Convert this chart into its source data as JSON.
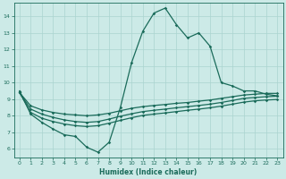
{
  "xlabel": "Humidex (Indice chaleur)",
  "bg_color": "#cceae7",
  "grid_color": "#aad4d0",
  "line_color": "#1a6b5a",
  "xlim": [
    -0.5,
    23.5
  ],
  "ylim": [
    5.5,
    14.8
  ],
  "xticks": [
    0,
    1,
    2,
    3,
    4,
    5,
    6,
    7,
    8,
    9,
    10,
    11,
    12,
    13,
    14,
    15,
    16,
    17,
    18,
    19,
    20,
    21,
    22,
    23
  ],
  "yticks": [
    6,
    7,
    8,
    9,
    10,
    11,
    12,
    13,
    14
  ],
  "series1_x": [
    0,
    1,
    2,
    3,
    4,
    5,
    6,
    7,
    8,
    9,
    10,
    11,
    12,
    13,
    14,
    15,
    16,
    17,
    18,
    19,
    20,
    21,
    22,
    23
  ],
  "series1_y": [
    9.5,
    8.1,
    7.6,
    7.2,
    6.85,
    6.75,
    6.1,
    5.8,
    6.4,
    8.5,
    11.2,
    13.1,
    14.2,
    14.5,
    13.5,
    12.7,
    13.0,
    12.2,
    10.0,
    9.8,
    9.5,
    9.5,
    9.3,
    9.2
  ],
  "series2_x": [
    0,
    1,
    2,
    3,
    4,
    5,
    6,
    7,
    8,
    9,
    10,
    11,
    12,
    13,
    14,
    15,
    16,
    17,
    18,
    19,
    20,
    21,
    22,
    23
  ],
  "series2_y": [
    9.4,
    8.6,
    8.35,
    8.2,
    8.1,
    8.05,
    8.0,
    8.05,
    8.15,
    8.3,
    8.45,
    8.55,
    8.62,
    8.68,
    8.75,
    8.8,
    8.88,
    8.95,
    9.05,
    9.15,
    9.25,
    9.3,
    9.35,
    9.35
  ],
  "series3_x": [
    0,
    1,
    2,
    3,
    4,
    5,
    6,
    7,
    8,
    9,
    10,
    11,
    12,
    13,
    14,
    15,
    16,
    17,
    18,
    19,
    20,
    21,
    22,
    23
  ],
  "series3_y": [
    9.4,
    8.4,
    8.1,
    7.9,
    7.75,
    7.65,
    7.6,
    7.65,
    7.8,
    7.97,
    8.12,
    8.25,
    8.33,
    8.4,
    8.48,
    8.55,
    8.62,
    8.7,
    8.8,
    8.92,
    9.05,
    9.1,
    9.15,
    9.18
  ],
  "series4_x": [
    0,
    1,
    2,
    3,
    4,
    5,
    6,
    7,
    8,
    9,
    10,
    11,
    12,
    13,
    14,
    15,
    16,
    17,
    18,
    19,
    20,
    21,
    22,
    23
  ],
  "series4_y": [
    9.4,
    8.2,
    7.85,
    7.65,
    7.5,
    7.4,
    7.35,
    7.4,
    7.55,
    7.72,
    7.88,
    8.02,
    8.1,
    8.17,
    8.25,
    8.33,
    8.4,
    8.48,
    8.58,
    8.7,
    8.82,
    8.9,
    8.95,
    8.98
  ]
}
